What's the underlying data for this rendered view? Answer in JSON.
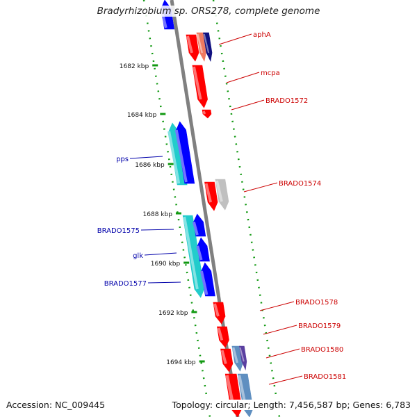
{
  "header": {
    "title": "Bradyrhizobium sp. ORS278, complete genome"
  },
  "footer": {
    "accession": "Accession: NC_009445",
    "summary": "Topology: circular; Length: 7,456,587 bp; Genes: 6,783"
  },
  "ruler": {
    "ticks": [
      "1682 kbp",
      "1684 kbp",
      "1686 kbp",
      "1688 kbp",
      "1690 kbp",
      "1692 kbp",
      "1694 kbp"
    ]
  },
  "colors": {
    "forward_gene": "#ff0000",
    "reverse_gene": "#0000ff",
    "cyan_gene": "#22cccc",
    "gray_gene": "#c0c0c0",
    "backbone": "#808080",
    "guide_dots": "#119911",
    "forward_label": "#cc0000",
    "reverse_label": "#0000aa"
  },
  "genes": [
    {
      "label": "aphA",
      "strand": "forward"
    },
    {
      "label": "mcpa",
      "strand": "forward"
    },
    {
      "label": "BRADO1572",
      "strand": "forward"
    },
    {
      "label": "BRADO1574",
      "strand": "forward"
    },
    {
      "label": "BRADO1578",
      "strand": "forward"
    },
    {
      "label": "BRADO1579",
      "strand": "forward"
    },
    {
      "label": "BRADO1580",
      "strand": "forward"
    },
    {
      "label": "BRADO1581",
      "strand": "forward"
    },
    {
      "label": "pps",
      "strand": "reverse"
    },
    {
      "label": "BRADO1575",
      "strand": "reverse"
    },
    {
      "label": "glk",
      "strand": "reverse"
    },
    {
      "label": "BRADO1577",
      "strand": "reverse"
    }
  ]
}
